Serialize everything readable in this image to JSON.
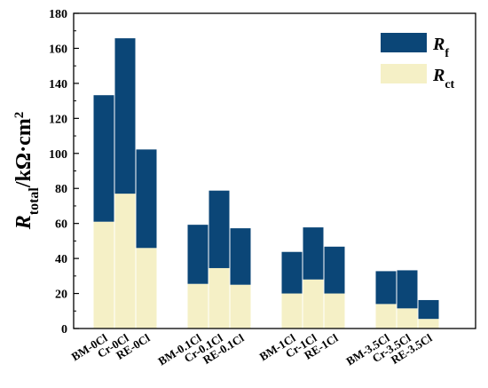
{
  "chart_data": {
    "type": "bar",
    "stacked": true,
    "categories": [
      "BM-0Cl",
      "Cr-0Cl",
      "RE-0Cl",
      "BM-0.1Cl",
      "Cr-0.1Cl",
      "RE-0.1Cl",
      "BM-1Cl",
      "Cr-1Cl",
      "RE-1Cl",
      "BM-3.5Cl",
      "Cr-3.5Cl",
      "RE-3.5Cl"
    ],
    "groups": [
      [
        "BM-0Cl",
        "Cr-0Cl",
        "RE-0Cl"
      ],
      [
        "BM-0.1Cl",
        "Cr-0.1Cl",
        "RE-0.1Cl"
      ],
      [
        "BM-1Cl",
        "Cr-1Cl",
        "RE-1Cl"
      ],
      [
        "BM-3.5Cl",
        "Cr-3.5Cl",
        "RE-3.5Cl"
      ]
    ],
    "series": [
      {
        "name": "R_ct",
        "label_main": "R",
        "label_sub": "ct",
        "color": "#f5f0c6",
        "values": [
          61,
          77,
          46,
          25.5,
          34.5,
          25,
          20,
          28,
          20,
          14,
          11.5,
          5.5
        ]
      },
      {
        "name": "R_f",
        "label_main": "R",
        "label_sub": "f",
        "color": "#0b4677",
        "values": [
          72.5,
          89,
          56.5,
          34,
          44.5,
          32.5,
          24,
          30,
          27,
          19,
          22,
          11
        ]
      }
    ],
    "ylabel": {
      "main": "R",
      "sub": "total",
      "unit_pre": "/kΩ·cm",
      "unit_sup": "2"
    },
    "ylim": [
      0,
      180
    ],
    "yticks": [
      "0",
      "20",
      "40",
      "60",
      "80",
      "100",
      "120",
      "140",
      "160",
      "180"
    ],
    "grid": false,
    "legend_position": "top-right"
  }
}
